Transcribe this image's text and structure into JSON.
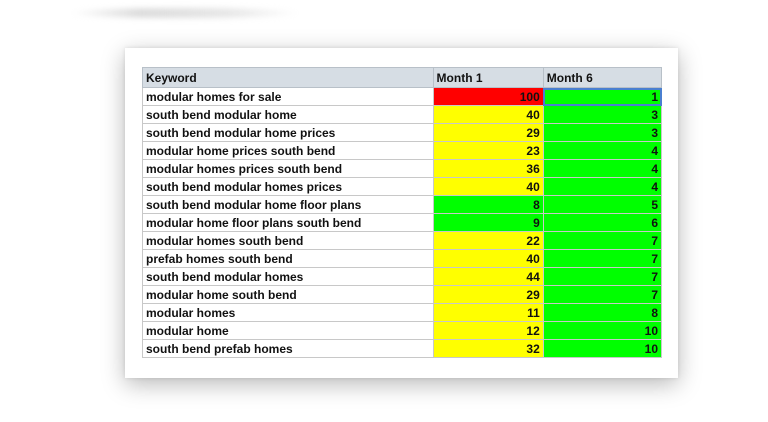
{
  "table": {
    "headers": [
      "Keyword",
      "Month 1",
      "Month 6"
    ],
    "rows": [
      {
        "keyword": "modular homes for sale",
        "m1": "100",
        "m6": "1",
        "m1_color": "#ff0000",
        "m6_color": "#00ff00"
      },
      {
        "keyword": "south bend modular home",
        "m1": "40",
        "m6": "3",
        "m1_color": "#ffff00",
        "m6_color": "#00ff00"
      },
      {
        "keyword": "south bend modular home prices",
        "m1": "29",
        "m6": "3",
        "m1_color": "#ffff00",
        "m6_color": "#00ff00"
      },
      {
        "keyword": "modular home prices south bend",
        "m1": "23",
        "m6": "4",
        "m1_color": "#ffff00",
        "m6_color": "#00ff00"
      },
      {
        "keyword": "modular homes prices south bend",
        "m1": "36",
        "m6": "4",
        "m1_color": "#ffff00",
        "m6_color": "#00ff00"
      },
      {
        "keyword": "south bend modular homes prices",
        "m1": "40",
        "m6": "4",
        "m1_color": "#ffff00",
        "m6_color": "#00ff00"
      },
      {
        "keyword": "south bend modular home floor plans",
        "m1": "8",
        "m6": "5",
        "m1_color": "#00ff00",
        "m6_color": "#00ff00"
      },
      {
        "keyword": "modular home floor plans south bend",
        "m1": "9",
        "m6": "6",
        "m1_color": "#00ff00",
        "m6_color": "#00ff00"
      },
      {
        "keyword": "modular homes south bend",
        "m1": "22",
        "m6": "7",
        "m1_color": "#ffff00",
        "m6_color": "#00ff00"
      },
      {
        "keyword": "prefab homes south bend",
        "m1": "40",
        "m6": "7",
        "m1_color": "#ffff00",
        "m6_color": "#00ff00"
      },
      {
        "keyword": "south bend modular homes",
        "m1": "44",
        "m6": "7",
        "m1_color": "#ffff00",
        "m6_color": "#00ff00"
      },
      {
        "keyword": "modular home south bend",
        "m1": "29",
        "m6": "7",
        "m1_color": "#ffff00",
        "m6_color": "#00ff00"
      },
      {
        "keyword": "modular homes",
        "m1": "11",
        "m6": "8",
        "m1_color": "#ffff00",
        "m6_color": "#00ff00"
      },
      {
        "keyword": "modular home",
        "m1": "12",
        "m6": "10",
        "m1_color": "#ffff00",
        "m6_color": "#00ff00"
      },
      {
        "keyword": "south bend prefab homes",
        "m1": "32",
        "m6": "10",
        "m1_color": "#ffff00",
        "m6_color": "#00ff00"
      }
    ]
  }
}
